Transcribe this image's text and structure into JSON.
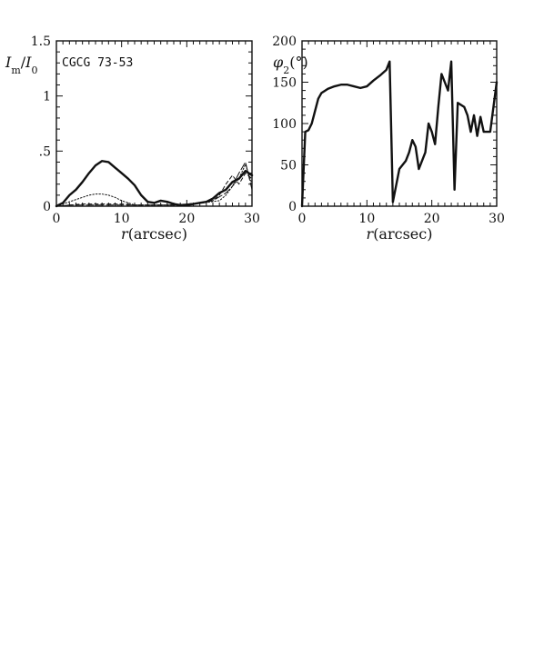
{
  "chart_data": [
    {
      "type": "line",
      "panel_label": "CGCG 73-53",
      "xlabel_symbol": "r",
      "xlabel_unit": "(arcsec)",
      "ylabel_main": "I",
      "ylabel_main_sub": "m",
      "ylabel_sep": "/",
      "ylabel_ref": "I",
      "ylabel_ref_sub": "0",
      "xlim": [
        0,
        30
      ],
      "ylim": [
        0,
        1.5
      ],
      "xticks": [
        0,
        10,
        20,
        30
      ],
      "xtick_labels": [
        "0",
        "10",
        "20",
        "30"
      ],
      "yticks": [
        0,
        0.5,
        1,
        1.5
      ],
      "ytick_labels": [
        "0",
        ".5",
        "1",
        "1.5"
      ],
      "grid": false,
      "series": [
        {
          "style": "solid-thick",
          "x": [
            0,
            1,
            2,
            3,
            4,
            5,
            6,
            7,
            8,
            9,
            10,
            11,
            12,
            13,
            14,
            15,
            16,
            17,
            18,
            19,
            20,
            21,
            22,
            23,
            24,
            25,
            26,
            27,
            28,
            29,
            30
          ],
          "y": [
            0.0,
            0.03,
            0.1,
            0.15,
            0.22,
            0.3,
            0.37,
            0.41,
            0.4,
            0.35,
            0.3,
            0.25,
            0.19,
            0.1,
            0.04,
            0.03,
            0.05,
            0.04,
            0.02,
            0.01,
            0.01,
            0.02,
            0.03,
            0.04,
            0.07,
            0.12,
            0.15,
            0.22,
            0.25,
            0.32,
            0.28
          ]
        },
        {
          "style": "dotted",
          "x": [
            0,
            1,
            2,
            3,
            4,
            5,
            6,
            7,
            8,
            9,
            10,
            11,
            12,
            13,
            14,
            15,
            20,
            25,
            26,
            27,
            28,
            29,
            30
          ],
          "y": [
            0.0,
            0.02,
            0.04,
            0.06,
            0.08,
            0.1,
            0.11,
            0.11,
            0.1,
            0.08,
            0.05,
            0.03,
            0.01,
            0.01,
            0.01,
            0.01,
            0.01,
            0.05,
            0.1,
            0.18,
            0.25,
            0.38,
            0.2
          ]
        },
        {
          "style": "short-dash",
          "x": [
            0,
            2,
            4,
            6,
            8,
            10,
            12,
            14,
            16,
            18,
            20,
            22,
            24,
            25,
            26,
            27,
            28,
            29,
            30
          ],
          "y": [
            0.0,
            0.01,
            0.02,
            0.02,
            0.02,
            0.02,
            0.01,
            0.01,
            0.01,
            0.01,
            0.02,
            0.03,
            0.05,
            0.1,
            0.2,
            0.28,
            0.2,
            0.3,
            0.25
          ]
        },
        {
          "style": "long-dash",
          "x": [
            0,
            2,
            4,
            6,
            8,
            10,
            12,
            14,
            16,
            18,
            20,
            22,
            24,
            26,
            27,
            28,
            29,
            30
          ],
          "y": [
            0.0,
            0.01,
            0.01,
            0.01,
            0.01,
            0.01,
            0.01,
            0.01,
            0.01,
            0.01,
            0.02,
            0.03,
            0.05,
            0.12,
            0.18,
            0.3,
            0.4,
            0.15
          ]
        }
      ]
    },
    {
      "type": "line",
      "xlabel_symbol": "r",
      "xlabel_unit": "(arcsec)",
      "ylabel_main": "φ",
      "ylabel_main_sub": "2",
      "ylabel_unit": "(°)",
      "xlim": [
        0,
        30
      ],
      "ylim": [
        0,
        200
      ],
      "xticks": [
        0,
        10,
        20,
        30
      ],
      "xtick_labels": [
        "0",
        "10",
        "20",
        "30"
      ],
      "yticks": [
        0,
        50,
        100,
        150,
        200
      ],
      "ytick_labels": [
        "0",
        "50",
        "100",
        "150",
        "200"
      ],
      "grid": false,
      "series": [
        {
          "style": "solid-thick",
          "x": [
            0,
            0.5,
            1,
            1.5,
            2,
            2.5,
            3,
            4,
            5,
            6,
            7,
            8,
            9,
            10,
            11,
            12,
            13,
            13.5,
            14,
            15,
            16,
            16.5,
            17,
            17.5,
            18,
            19,
            19.5,
            20,
            20.5,
            21,
            21.5,
            22,
            22.5,
            23,
            23.5,
            24,
            25,
            25.5,
            26,
            26.5,
            27,
            27.5,
            28,
            29,
            29.5,
            30
          ],
          "y": [
            0,
            90,
            92,
            100,
            115,
            130,
            137,
            142,
            145,
            147,
            147,
            145,
            143,
            145,
            152,
            158,
            165,
            175,
            5,
            45,
            55,
            65,
            80,
            72,
            45,
            65,
            100,
            90,
            75,
            120,
            160,
            150,
            140,
            175,
            20,
            125,
            120,
            110,
            90,
            110,
            85,
            108,
            90,
            90,
            120,
            150
          ]
        }
      ]
    }
  ]
}
